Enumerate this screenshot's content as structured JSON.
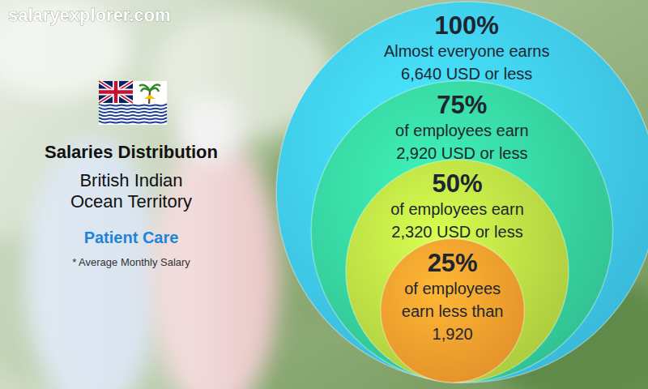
{
  "chart_data": {
    "type": "circle",
    "site": "salaryexplorer.com",
    "title": "Salaries Distribution",
    "subtitle": [
      "British Indian",
      "Ocean Territory"
    ],
    "category": "Patient Care",
    "note": "* Average Monthly Salary",
    "percentiles": [
      100,
      75,
      50,
      25
    ],
    "percentile_labels": [
      "100%",
      "75%",
      "50%",
      "25%"
    ],
    "captions": [
      [
        "Almost everyone earns"
      ],
      [
        "of employees earn"
      ],
      [
        "of employees earn"
      ],
      [
        "of employees",
        "earn less than"
      ]
    ],
    "values": [
      6640,
      2920,
      2320,
      1920
    ],
    "value_labels": [
      "6,640 USD or less",
      "2,920 USD or less",
      "2,320 USD or less",
      "1,920"
    ],
    "colors": [
      "#3dc3e6",
      "#35cc9a",
      "#b5d642",
      "#f09a2c"
    ]
  }
}
